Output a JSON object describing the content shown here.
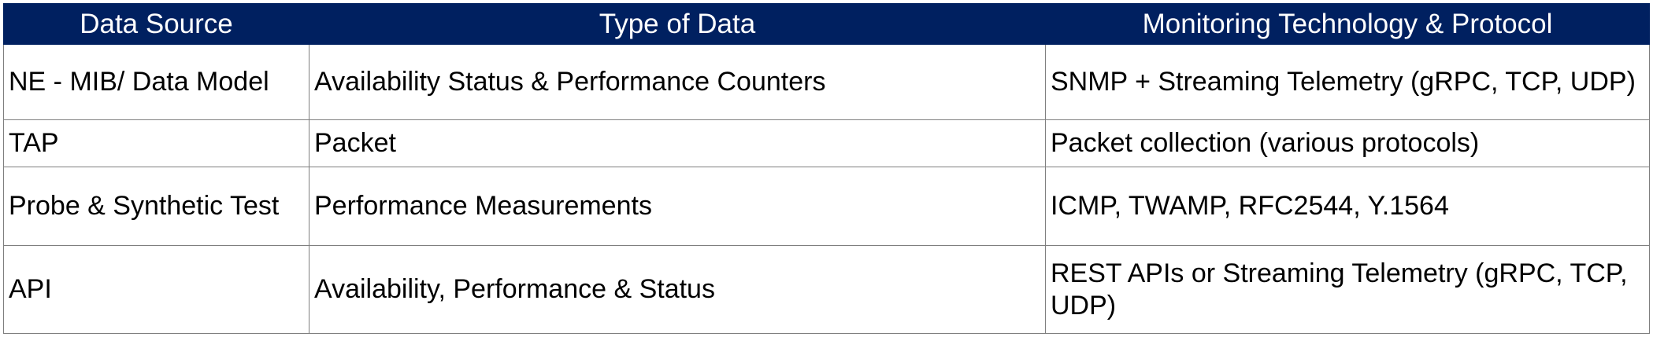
{
  "table": {
    "headers": [
      "Data Source",
      "Type of Data",
      "Monitoring Technology & Protocol"
    ],
    "rows": [
      [
        "NE - MIB/ Data Model",
        "Availability Status & Performance Counters",
        "SNMP + Streaming Telemetry (gRPC, TCP, UDP)"
      ],
      [
        "TAP",
        "Packet",
        "Packet collection (various protocols)"
      ],
      [
        "Probe & Synthetic Test",
        "Performance Measurements",
        "ICMP, TWAMP, RFC2544, Y.1564"
      ],
      [
        "API",
        "Availability, Performance & Status",
        "REST APIs or Streaming Telemetry (gRPC, TCP, UDP)"
      ]
    ]
  },
  "colors": {
    "header_background": "#002060",
    "header_text": "#ffffff",
    "border": "#7f7f7f"
  }
}
